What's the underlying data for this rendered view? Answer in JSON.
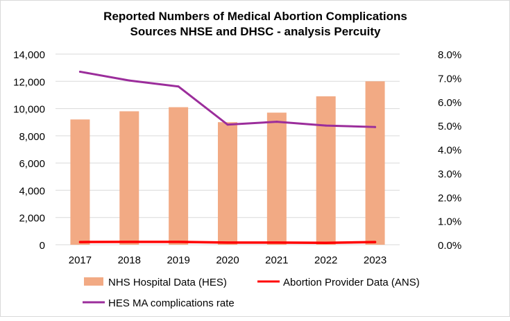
{
  "chart_data": {
    "type": "bar+line",
    "title": [
      "Reported Numbers of Medical Abortion Complications",
      "Sources NHSE and DHSC - analysis Percuity"
    ],
    "categories": [
      "2017",
      "2018",
      "2019",
      "2020",
      "2021",
      "2022",
      "2023"
    ],
    "y_left": {
      "range": [
        0,
        14000
      ],
      "ticks": [
        "0",
        "2,000",
        "4,000",
        "6,000",
        "8,000",
        "10,000",
        "12,000",
        "14,000"
      ]
    },
    "y_right": {
      "range": [
        0,
        8
      ],
      "ticks": [
        "0.0%",
        "1.0%",
        "2.0%",
        "3.0%",
        "4.0%",
        "5.0%",
        "6.0%",
        "7.0%",
        "8.0%"
      ]
    },
    "grid": true,
    "legend_position": "bottom",
    "series": [
      {
        "name": "NHS Hospital Data (HES)",
        "type": "bar",
        "axis": "left",
        "color": "#f2aa84",
        "values": [
          9200,
          9800,
          10100,
          9000,
          9700,
          10900,
          12000
        ]
      },
      {
        "name": "Abortion Provider Data (ANS)",
        "type": "line",
        "axis": "left",
        "color": "#ff0000",
        "values": [
          200,
          210,
          210,
          160,
          160,
          140,
          200
        ]
      },
      {
        "name": "HES MA complications rate",
        "type": "line",
        "axis": "right",
        "color": "#9b2d9b",
        "values": [
          7.26,
          6.89,
          6.64,
          5.04,
          5.16,
          5.0,
          4.94
        ]
      }
    ]
  }
}
